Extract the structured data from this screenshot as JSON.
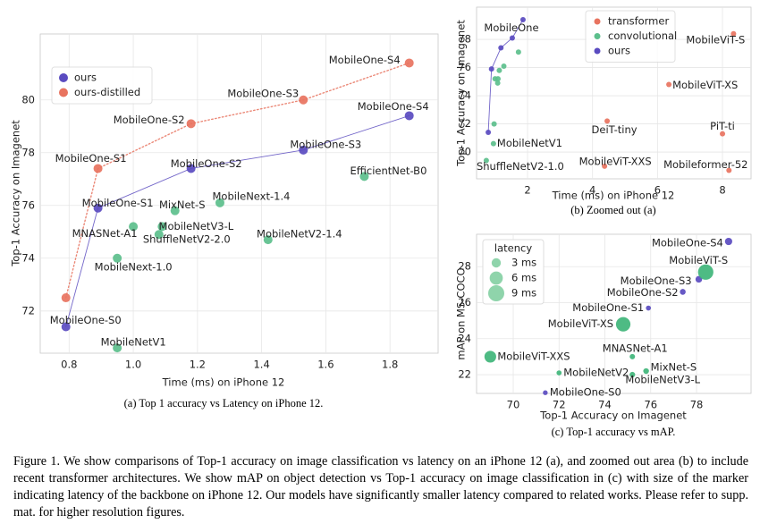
{
  "chart_data": [
    {
      "type": "scatter",
      "caption": "(a) Top 1 accuracy vs Latency on iPhone 12.",
      "xlabel": "Time (ms) on iPhone 12",
      "ylabel": "Top-1 Accuracy on Imagenet",
      "xlim": [
        0.71,
        1.95
      ],
      "ylim": [
        70.4,
        82.5
      ],
      "xticks": [
        0.8,
        {
          "value": 1,
          "label": "1.0"
        },
        1.2,
        1.4,
        1.6,
        1.8
      ],
      "yticks": [
        72,
        74,
        76,
        78,
        80
      ],
      "grid": true,
      "legend": "upper left",
      "series": [
        {
          "name": "ours",
          "color": "#5a4bc0",
          "line": "solid",
          "x": [
            0.79,
            0.89,
            1.18,
            1.53,
            1.86
          ],
          "values": [
            71.4,
            75.9,
            77.4,
            78.1,
            79.4
          ],
          "labels": [
            "MobileOne-S0",
            "MobileOne-S1",
            "MobileOne-S2",
            "MobileOne-S3",
            "MobileOne-S4"
          ]
        },
        {
          "name": "ours-distilled",
          "color": "#e8735f",
          "line": "dotted",
          "x": [
            0.79,
            0.89,
            1.18,
            1.53,
            1.86
          ],
          "values": [
            72.5,
            77.4,
            79.1,
            80.0,
            81.4
          ],
          "labels": [
            null,
            "MobileOne-S1",
            "MobileOne-S2",
            "MobileOne-S3",
            "MobileOne-S4"
          ]
        },
        {
          "color": "#5cbf8c",
          "x": [
            0.95,
            1.0,
            0.95,
            1.13,
            1.09,
            1.08,
            1.27,
            1.42,
            1.72
          ],
          "values": [
            70.6,
            75.2,
            74.0,
            75.8,
            75.2,
            74.9,
            76.1,
            74.7,
            77.1
          ],
          "labels": [
            "MobileNetV1",
            "MNASNet-A1",
            "MobileNext-1.0",
            "MixNet-S",
            "MobileNetV3-L",
            "ShuffleNetV2-2.0",
            "MobileNext-1.4",
            "MobileNetV2-1.4",
            "EfficientNet-B0"
          ]
        }
      ]
    },
    {
      "type": "scatter",
      "caption": "(b) Zoomed out (a)",
      "xlabel": "Time (ms) on iPhone 12",
      "ylabel": "Top-1 Accuracy on Imagenet",
      "xlim": [
        0.43,
        8.88
      ],
      "ylim": [
        68.1,
        80.29
      ],
      "xticks": [
        2,
        4,
        6,
        8
      ],
      "yticks": [
        70,
        72,
        74,
        76,
        78
      ],
      "grid": true,
      "legend": "upper center",
      "series": [
        {
          "name": "transformer",
          "color": "#e8735f",
          "x": [
            8.34,
            6.35,
            4.45,
            8.0,
            4.37,
            8.2
          ],
          "values": [
            78.4,
            74.8,
            72.2,
            71.3,
            69.0,
            68.7
          ],
          "labels": [
            "MobileViT-S",
            "MobileViT-XS",
            "DeiT-tiny",
            "PiT-ti",
            "MobileViT-XXS",
            "Mobileformer-52"
          ]
        },
        {
          "name": "convolutional",
          "color": "#5cbf8c",
          "x": [
            0.73,
            0.95,
            0.97,
            1.0,
            1.08,
            1.09,
            1.13,
            1.27,
            1.72
          ],
          "values": [
            69.4,
            70.6,
            72.0,
            75.2,
            74.9,
            75.2,
            75.8,
            76.1,
            77.1
          ],
          "labels": [
            "ShuffleNetV2-1.0",
            "MobileNetV1",
            null,
            null,
            null,
            null,
            null,
            null,
            null
          ]
        },
        {
          "name": "ours",
          "color": "#5a4bc0",
          "line": "solid",
          "x": [
            0.79,
            0.89,
            1.18,
            1.53,
            1.86
          ],
          "values": [
            71.4,
            75.9,
            77.4,
            78.1,
            79.4
          ],
          "labels": [
            null,
            null,
            null,
            "MobileOne",
            null
          ]
        }
      ]
    },
    {
      "type": "scatter",
      "caption": "(c) Top-1 accuracy vs mAP.",
      "xlabel": "Top-1 Accuracy on Imagenet",
      "ylabel": "mAP on MS-COCO",
      "xlim": [
        68.4,
        80.38
      ],
      "ylim": [
        20.96,
        29.8
      ],
      "xticks": [
        70,
        72,
        74,
        76,
        78
      ],
      "yticks": [
        22,
        24,
        26,
        28
      ],
      "grid": true,
      "size_legend": {
        "title": "latency",
        "values": [
          3,
          6,
          9
        ],
        "labels": [
          "3 ms",
          "6 ms",
          "9 ms"
        ],
        "color": "#8fd4ab"
      },
      "series": [
        {
          "color": "#5a4bc0",
          "x": [
            71.4,
            75.9,
            77.4,
            78.1,
            79.4
          ],
          "values": [
            21.0,
            25.7,
            26.6,
            27.3,
            29.4
          ],
          "sizes": [
            0.79,
            0.89,
            1.18,
            1.53,
            1.86
          ],
          "labels": [
            "MobileOne-S0",
            "MobileOne-S1",
            "MobileOne-S2",
            "MobileOne-S3",
            "MobileOne-S4"
          ]
        },
        {
          "color": "#3fb57a",
          "x": [
            78.4,
            74.8,
            69.0,
            75.2,
            75.8,
            75.2,
            72.0
          ],
          "values": [
            27.7,
            24.8,
            23.0,
            23.0,
            22.2,
            22.0,
            22.1
          ],
          "sizes": [
            8.2,
            7.3,
            4.8,
            1.0,
            1.13,
            1.09,
            0.9
          ],
          "labels": [
            "MobileViT-S",
            "MobileViT-XS",
            "MobileViT-XXS",
            "MNASNet-A1",
            "MixNet-S",
            "MobileNetV3-L",
            "MobileNetV2"
          ]
        }
      ]
    }
  ],
  "figure_caption": "Figure 1. We show comparisons of Top-1 accuracy on image classification vs latency on an iPhone 12 (a), and zoomed out area (b) to include recent transformer architectures. We show mAP on object detection vs Top-1 accuracy on image classification in (c) with size of the marker indicating latency of the backbone on iPhone 12. Our models have significantly smaller latency compared to related works. Please refer to supp. mat. for higher resolution figures."
}
